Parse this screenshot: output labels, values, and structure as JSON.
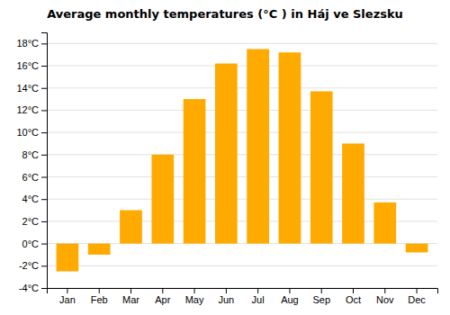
{
  "chart_data": {
    "type": "bar",
    "title": "Average monthly temperatures (°C ) in Háj ve Slezsku",
    "categories": [
      "Jan",
      "Feb",
      "Mar",
      "Apr",
      "May",
      "Jun",
      "Jul",
      "Aug",
      "Sep",
      "Oct",
      "Nov",
      "Dec"
    ],
    "values": [
      -2.5,
      -1.0,
      3.0,
      8.0,
      13.0,
      16.2,
      17.5,
      17.2,
      13.7,
      9.0,
      3.7,
      -0.8
    ],
    "color": "#FFAA00",
    "ylim": [
      -4,
      19
    ],
    "yticks": [
      {
        "value": -4,
        "label": "-4°C"
      },
      {
        "value": -2,
        "label": "-2°C"
      },
      {
        "value": 0,
        "label": "0°C"
      },
      {
        "value": 2,
        "label": "2°C"
      },
      {
        "value": 4,
        "label": "4°C"
      },
      {
        "value": 6,
        "label": "6°C"
      },
      {
        "value": 8,
        "label": "8°C"
      },
      {
        "value": 10,
        "label": "10°C"
      },
      {
        "value": 12,
        "label": "12°C"
      },
      {
        "value": 14,
        "label": "14°C"
      },
      {
        "value": 16,
        "label": "16°C"
      },
      {
        "value": 18,
        "label": "18°C"
      }
    ],
    "grid": true
  }
}
